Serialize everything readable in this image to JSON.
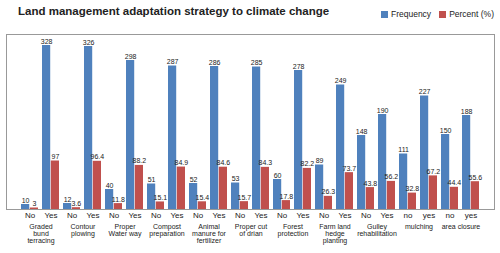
{
  "chart_data": {
    "type": "bar",
    "title": "Land management adaptation strategy to climate change",
    "groups": [
      "Graded bund terracing",
      "Contour plowing",
      "Proper Water way",
      "Compost preparation",
      "Animal manure for fertilizer",
      "Proper cut of drian",
      "Forest protection",
      "Farm land hedge planting",
      "Gulley rehabilitation",
      "mulching",
      "area closure"
    ],
    "categories": [
      "No",
      "Yes",
      "No",
      "Yes",
      "No",
      "Yes",
      "No",
      "Yes",
      "No",
      "Yes",
      "No",
      "Yes",
      "No",
      "Yes",
      "No",
      "Yes",
      "No",
      "Yes",
      "no",
      "yes",
      "no",
      "yes"
    ],
    "series": [
      {
        "name": "Frequency",
        "color": "#4f81bd",
        "values": [
          10,
          328,
          12,
          326,
          40,
          298,
          51,
          287,
          52,
          286,
          53,
          285,
          60,
          278,
          89,
          249,
          148,
          190,
          111,
          227,
          150,
          188
        ]
      },
      {
        "name": "Percent (%)",
        "color": "#c0504d",
        "values": [
          3,
          97,
          3.6,
          96.4,
          11.8,
          88.2,
          15.1,
          84.9,
          15.4,
          84.6,
          15.7,
          84.3,
          17.8,
          82.2,
          26.3,
          73.7,
          43.8,
          56.2,
          32.8,
          67.2,
          44.4,
          55.6
        ]
      }
    ],
    "ylim": [
      0,
      350
    ],
    "grid": false,
    "legend": "top-right",
    "data_labels": true,
    "tick_labels": "x"
  }
}
